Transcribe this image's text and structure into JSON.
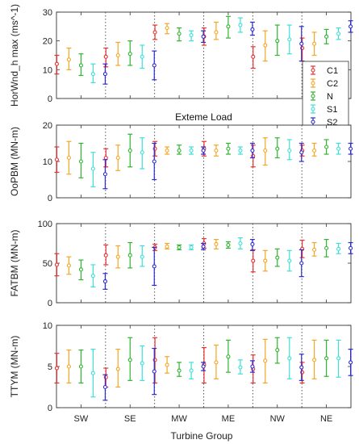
{
  "xlabel": "Turbine Group",
  "categories": [
    "SW",
    "SE",
    "MW",
    "ME",
    "NW",
    "NE"
  ],
  "series_names": [
    "C1",
    "C2",
    "N",
    "S1",
    "S2"
  ],
  "colors": [
    "#e8312f",
    "#f5a623",
    "#2fb52f",
    "#3de0d8",
    "#2c2cd0"
  ],
  "chart_data": [
    {
      "type": "errorbar",
      "title": "",
      "ylabel": "HorWnd_h max (ms^-1)",
      "ylim": [
        0,
        30
      ],
      "yticks": [
        0,
        10,
        20,
        30
      ],
      "grid": false,
      "legend": "right",
      "series": [
        {
          "name": "C1",
          "mean": [
            12,
            14.5,
            23,
            21.5,
            14.5,
            17.5
          ],
          "lower": [
            8.5,
            11,
            20.5,
            18.5,
            10.5,
            13
          ],
          "upper": [
            15,
            17.5,
            25.5,
            24.5,
            18,
            21
          ]
        },
        {
          "name": "C2",
          "mean": [
            13.5,
            15,
            24.5,
            23,
            18.5,
            19
          ],
          "lower": [
            10,
            11.5,
            22.5,
            20.5,
            13,
            15
          ],
          "upper": [
            17.5,
            19.5,
            26,
            26.5,
            23.5,
            23
          ]
        },
        {
          "name": "N",
          "mean": [
            11.5,
            15.5,
            22.5,
            25,
            20,
            21.5
          ],
          "lower": [
            8,
            11.5,
            20,
            21,
            15,
            19
          ],
          "upper": [
            15.5,
            20,
            24.5,
            28.5,
            25.5,
            24
          ]
        },
        {
          "name": "S1",
          "mean": [
            8.5,
            14.5,
            22,
            25.5,
            20.5,
            22.5
          ],
          "lower": [
            5.5,
            10.5,
            20,
            23,
            15.5,
            20.5
          ],
          "upper": [
            12,
            18.5,
            23.5,
            28,
            25.5,
            24.5
          ]
        },
        {
          "name": "S2",
          "mean": [
            8.5,
            11.5,
            21.5,
            24,
            19,
            25
          ],
          "lower": [
            5,
            6.5,
            19.5,
            22,
            13,
            23
          ],
          "upper": [
            12,
            16.5,
            23.5,
            26.5,
            25,
            27
          ]
        }
      ]
    },
    {
      "type": "errorbar",
      "title": "Exteme Load",
      "ylabel": "OoPBM (MN-m)",
      "ylim": [
        0,
        20
      ],
      "yticks": [
        0,
        10,
        20
      ],
      "grid": false,
      "series": [
        {
          "name": "C1",
          "mean": [
            10.5,
            11,
            13.5,
            13.5,
            11.5,
            13
          ],
          "lower": [
            7,
            8.5,
            11.5,
            11.5,
            8.5,
            11.5
          ],
          "upper": [
            14,
            13.5,
            15.5,
            15.5,
            14.5,
            14.5
          ]
        },
        {
          "name": "C2",
          "mean": [
            11,
            11,
            13,
            13,
            13,
            13
          ],
          "lower": [
            6.5,
            7.5,
            12,
            11.5,
            9,
            11.5
          ],
          "upper": [
            15.5,
            14.5,
            14,
            14.5,
            16.5,
            15
          ]
        },
        {
          "name": "N",
          "mean": [
            10,
            13,
            13,
            13.5,
            13.5,
            14
          ],
          "lower": [
            5.5,
            8.5,
            12,
            12,
            11,
            12
          ],
          "upper": [
            15,
            17.5,
            14.5,
            15,
            16.5,
            16
          ]
        },
        {
          "name": "S1",
          "mean": [
            8,
            12.5,
            13,
            13,
            13,
            13.5
          ],
          "lower": [
            3,
            8,
            12,
            12,
            10.5,
            12
          ],
          "upper": [
            12.5,
            16.5,
            14,
            14,
            16,
            15
          ]
        },
        {
          "name": "S2",
          "mean": [
            6.5,
            10,
            13,
            13,
            12.5,
            13.5
          ],
          "lower": [
            2.5,
            5,
            12,
            11,
            10,
            12
          ],
          "upper": [
            10.5,
            15,
            14,
            15,
            15,
            15
          ]
        }
      ]
    },
    {
      "type": "errorbar",
      "title": "",
      "ylabel": "FATBM (MN-m)",
      "ylim": [
        0,
        100
      ],
      "yticks": [
        0,
        50,
        100
      ],
      "grid": false,
      "series": [
        {
          "name": "C1",
          "mean": [
            48,
            60,
            70,
            75,
            53,
            68
          ],
          "lower": [
            34,
            48,
            66,
            69,
            39,
            57
          ],
          "upper": [
            62,
            73,
            74,
            81,
            67,
            79
          ]
        },
        {
          "name": "C2",
          "mean": [
            47,
            58,
            71,
            74,
            53,
            67
          ],
          "lower": [
            36,
            44,
            68,
            68,
            40,
            59
          ],
          "upper": [
            58,
            72,
            75,
            80,
            66,
            76
          ]
        },
        {
          "name": "N",
          "mean": [
            42,
            60,
            70,
            73,
            57,
            69
          ],
          "lower": [
            29,
            44,
            67,
            69,
            46,
            58
          ],
          "upper": [
            54,
            76,
            73,
            77,
            68,
            80
          ]
        },
        {
          "name": "S1",
          "mean": [
            34,
            58,
            70,
            75,
            53,
            68
          ],
          "lower": [
            20,
            46,
            67,
            68,
            40,
            62
          ],
          "upper": [
            48,
            72,
            73,
            82,
            66,
            75
          ]
        },
        {
          "name": "S2",
          "mean": [
            27,
            46,
            71,
            74,
            50,
            69
          ],
          "lower": [
            17,
            22,
            67,
            66,
            33,
            62
          ],
          "upper": [
            37,
            70,
            75,
            80,
            67,
            76
          ]
        }
      ]
    },
    {
      "type": "errorbar",
      "title": "",
      "ylabel": "TTYM (MN-m)",
      "ylim": [
        0,
        10
      ],
      "yticks": [
        0,
        5,
        10
      ],
      "grid": false,
      "series": [
        {
          "name": "C1",
          "mean": [
            4.8,
            3.7,
            5.8,
            5.2,
            4.7,
            4.3
          ],
          "lower": [
            3,
            2.5,
            3,
            3,
            3,
            3
          ],
          "upper": [
            6.6,
            4.8,
            8.5,
            7.3,
            6.4,
            5.5
          ]
        },
        {
          "name": "C2",
          "mean": [
            5,
            4.7,
            5.2,
            5.5,
            5.7,
            5.8
          ],
          "lower": [
            3,
            2.5,
            4.2,
            3.5,
            3,
            3.5
          ],
          "upper": [
            7,
            7.1,
            6.2,
            7.6,
            8.3,
            8.2
          ]
        },
        {
          "name": "N",
          "mean": [
            5,
            5.8,
            4.5,
            6.2,
            7,
            6
          ],
          "lower": [
            3,
            3.3,
            3.8,
            4.3,
            5.4,
            3.8
          ],
          "upper": [
            7,
            8.5,
            5.5,
            8.2,
            8.5,
            8.2
          ]
        },
        {
          "name": "S1",
          "mean": [
            4.2,
            5.4,
            4.5,
            4.9,
            6,
            6
          ],
          "lower": [
            1.3,
            3.3,
            3.5,
            4.1,
            3.5,
            3.7
          ],
          "upper": [
            7.1,
            7.5,
            5.5,
            5.8,
            8.5,
            8.2
          ]
        },
        {
          "name": "S2",
          "mean": [
            2.5,
            4.4,
            5,
            5,
            4.9,
            5.5
          ],
          "lower": [
            0.9,
            1.6,
            4.5,
            4.3,
            3.3,
            3.9
          ],
          "upper": [
            4,
            7.2,
            5.5,
            5.7,
            6.5,
            7.1
          ]
        }
      ]
    }
  ]
}
